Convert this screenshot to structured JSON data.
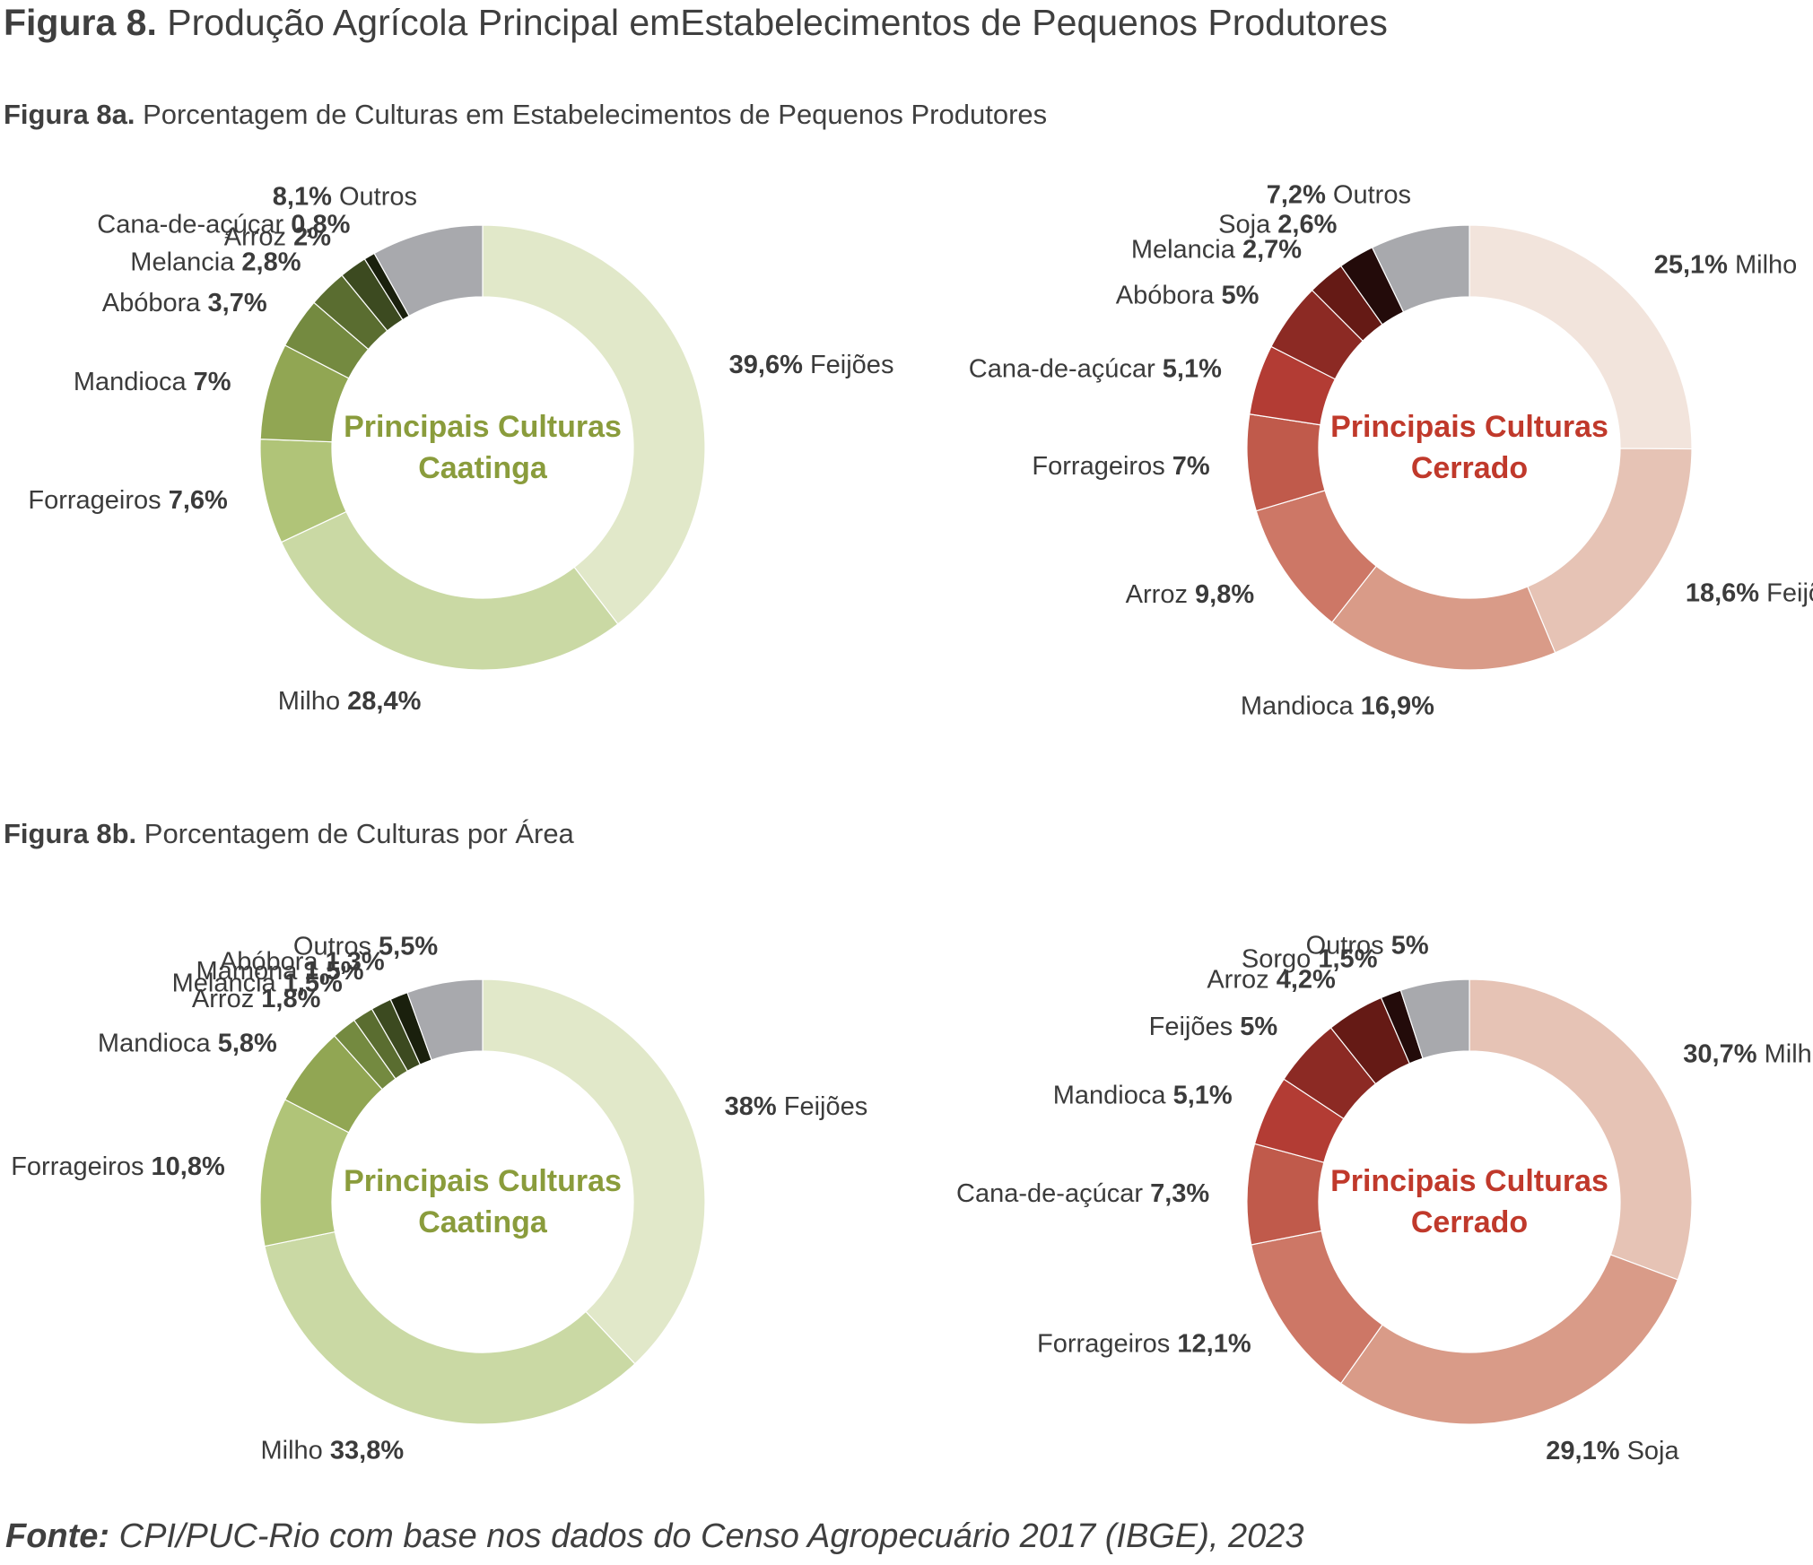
{
  "figure": {
    "title_bold": "Figura 8.",
    "title_rest": "Produção Agrícola Principal emEstabelecimentos de Pequenos Produtores",
    "sub_a_bold": "Figura 8a.",
    "sub_a_rest": "Porcentagem de Culturas em Estabelecimentos de Pequenos Produtores",
    "sub_b_bold": "Figura 8b.",
    "sub_b_rest": "Porcentagem de Culturas por Área",
    "source_bold": "Fonte:",
    "source_rest": "CPI/PUC-Rio com base nos dados do Censo Agropecuário 2017 (IBGE), 2023"
  },
  "colors": {
    "caatinga_center": "#8a9c3c",
    "cerrado_center": "#c0392b",
    "outros": "#a8a9ad"
  },
  "chart_data": [
    {
      "type": "pie",
      "variant": "donut",
      "center_line1": "Principais Culturas",
      "center_line2": "Caatinga",
      "center_color": "#8a9c3c",
      "slices": [
        {
          "name": "Feijões",
          "value": 39.6,
          "label": "39,6%",
          "color": "#e1e8c9",
          "pct_first": true
        },
        {
          "name": "Milho",
          "value": 28.4,
          "label": "28,4%",
          "color": "#cad9a4",
          "pct_first": false
        },
        {
          "name": "Forrageiros",
          "value": 7.6,
          "label": "7,6%",
          "color": "#b0c478",
          "pct_first": false
        },
        {
          "name": "Mandioca",
          "value": 7,
          "label": "7%",
          "color": "#91a653",
          "pct_first": false
        },
        {
          "name": "Abóbora",
          "value": 3.7,
          "label": "3,7%",
          "color": "#748a40",
          "pct_first": false
        },
        {
          "name": "Melancia",
          "value": 2.8,
          "label": "2,8%",
          "color": "#5a6d30",
          "pct_first": false
        },
        {
          "name": "Arroz",
          "value": 2,
          "label": "2%",
          "color": "#3c4a20",
          "pct_first": false
        },
        {
          "name": "Cana-de-açúcar",
          "value": 0.8,
          "label": "0,8%",
          "color": "#1a200d",
          "pct_first": false
        },
        {
          "name": "Outros",
          "value": 8.1,
          "label": "8,1%",
          "color": "#a8a9ad",
          "pct_first": true
        }
      ]
    },
    {
      "type": "pie",
      "variant": "donut",
      "center_line1": "Principais Culturas",
      "center_line2": "Cerrado",
      "center_color": "#c0392b",
      "slices": [
        {
          "name": "Milho",
          "value": 25.1,
          "label": "25,1%",
          "color": "#f2e4dc",
          "pct_first": true
        },
        {
          "name": "Feijões",
          "value": 18.6,
          "label": "18,6%",
          "color": "#e6c3b5",
          "pct_first": true
        },
        {
          "name": "Mandioca",
          "value": 16.9,
          "label": "16,9%",
          "color": "#d99b88",
          "pct_first": false
        },
        {
          "name": "Arroz",
          "value": 9.8,
          "label": "9,8%",
          "color": "#cd7766",
          "pct_first": false
        },
        {
          "name": "Forrageiros",
          "value": 7,
          "label": "7%",
          "color": "#c05a4b",
          "pct_first": false
        },
        {
          "name": "Cana-de-açúcar",
          "value": 5.1,
          "label": "5,1%",
          "color": "#b33c34",
          "pct_first": false
        },
        {
          "name": "Abóbora",
          "value": 5,
          "label": "5%",
          "color": "#8c2a24",
          "pct_first": false
        },
        {
          "name": "Melancia",
          "value": 2.7,
          "label": "2,7%",
          "color": "#651a15",
          "pct_first": false
        },
        {
          "name": "Soja",
          "value": 2.6,
          "label": "2,6%",
          "color": "#230b0a",
          "pct_first": false
        },
        {
          "name": "Outros",
          "value": 7.2,
          "label": "7,2%",
          "color": "#a8a9ad",
          "pct_first": true
        }
      ]
    },
    {
      "type": "pie",
      "variant": "donut",
      "center_line1": "Principais Culturas",
      "center_line2": "Caatinga",
      "center_color": "#8a9c3c",
      "slices": [
        {
          "name": "Feijões",
          "value": 38,
          "label": "38%",
          "color": "#e1e8c9",
          "pct_first": true
        },
        {
          "name": "Milho",
          "value": 33.8,
          "label": "33,8%",
          "color": "#cad9a4",
          "pct_first": false
        },
        {
          "name": "Forrageiros",
          "value": 10.8,
          "label": "10,8%",
          "color": "#b0c478",
          "pct_first": false
        },
        {
          "name": "Mandioca",
          "value": 5.8,
          "label": "5,8%",
          "color": "#91a653",
          "pct_first": false
        },
        {
          "name": "Arroz",
          "value": 1.8,
          "label": "1,8%",
          "color": "#748a40",
          "pct_first": false
        },
        {
          "name": "Melancia",
          "value": 1.5,
          "label": "1,5%",
          "color": "#5a6d30",
          "pct_first": false
        },
        {
          "name": "Mamona",
          "value": 1.5,
          "label": "1,5%",
          "color": "#3c4a20",
          "pct_first": false
        },
        {
          "name": "Abóbora",
          "value": 1.3,
          "label": "1,3%",
          "color": "#1a200d",
          "pct_first": false
        },
        {
          "name": "Outros",
          "value": 5.5,
          "label": "5,5%",
          "color": "#a8a9ad",
          "pct_first": false
        }
      ]
    },
    {
      "type": "pie",
      "variant": "donut",
      "center_line1": "Principais Culturas",
      "center_line2": "Cerrado",
      "center_color": "#c0392b",
      "slices": [
        {
          "name": "Milho",
          "value": 30.7,
          "label": "30,7%",
          "color": "#e6c3b5",
          "pct_first": true
        },
        {
          "name": "Soja",
          "value": 29.1,
          "label": "29,1%",
          "color": "#d99b88",
          "pct_first": true
        },
        {
          "name": "Forrageiros",
          "value": 12.1,
          "label": "12,1%",
          "color": "#cd7766",
          "pct_first": false
        },
        {
          "name": "Cana-de-açúcar",
          "value": 7.3,
          "label": "7,3%",
          "color": "#c05a4b",
          "pct_first": false
        },
        {
          "name": "Mandioca",
          "value": 5.1,
          "label": "5,1%",
          "color": "#b33c34",
          "pct_first": false
        },
        {
          "name": "Feijões",
          "value": 5,
          "label": "5%",
          "color": "#8c2a24",
          "pct_first": false
        },
        {
          "name": "Arroz",
          "value": 4.2,
          "label": "4,2%",
          "color": "#651a15",
          "pct_first": false
        },
        {
          "name": "Sorgo",
          "value": 1.5,
          "label": "1,5%",
          "color": "#230b0a",
          "pct_first": false
        },
        {
          "name": "Outros",
          "value": 5,
          "label": "5%",
          "color": "#a8a9ad",
          "pct_first": false
        }
      ]
    }
  ]
}
